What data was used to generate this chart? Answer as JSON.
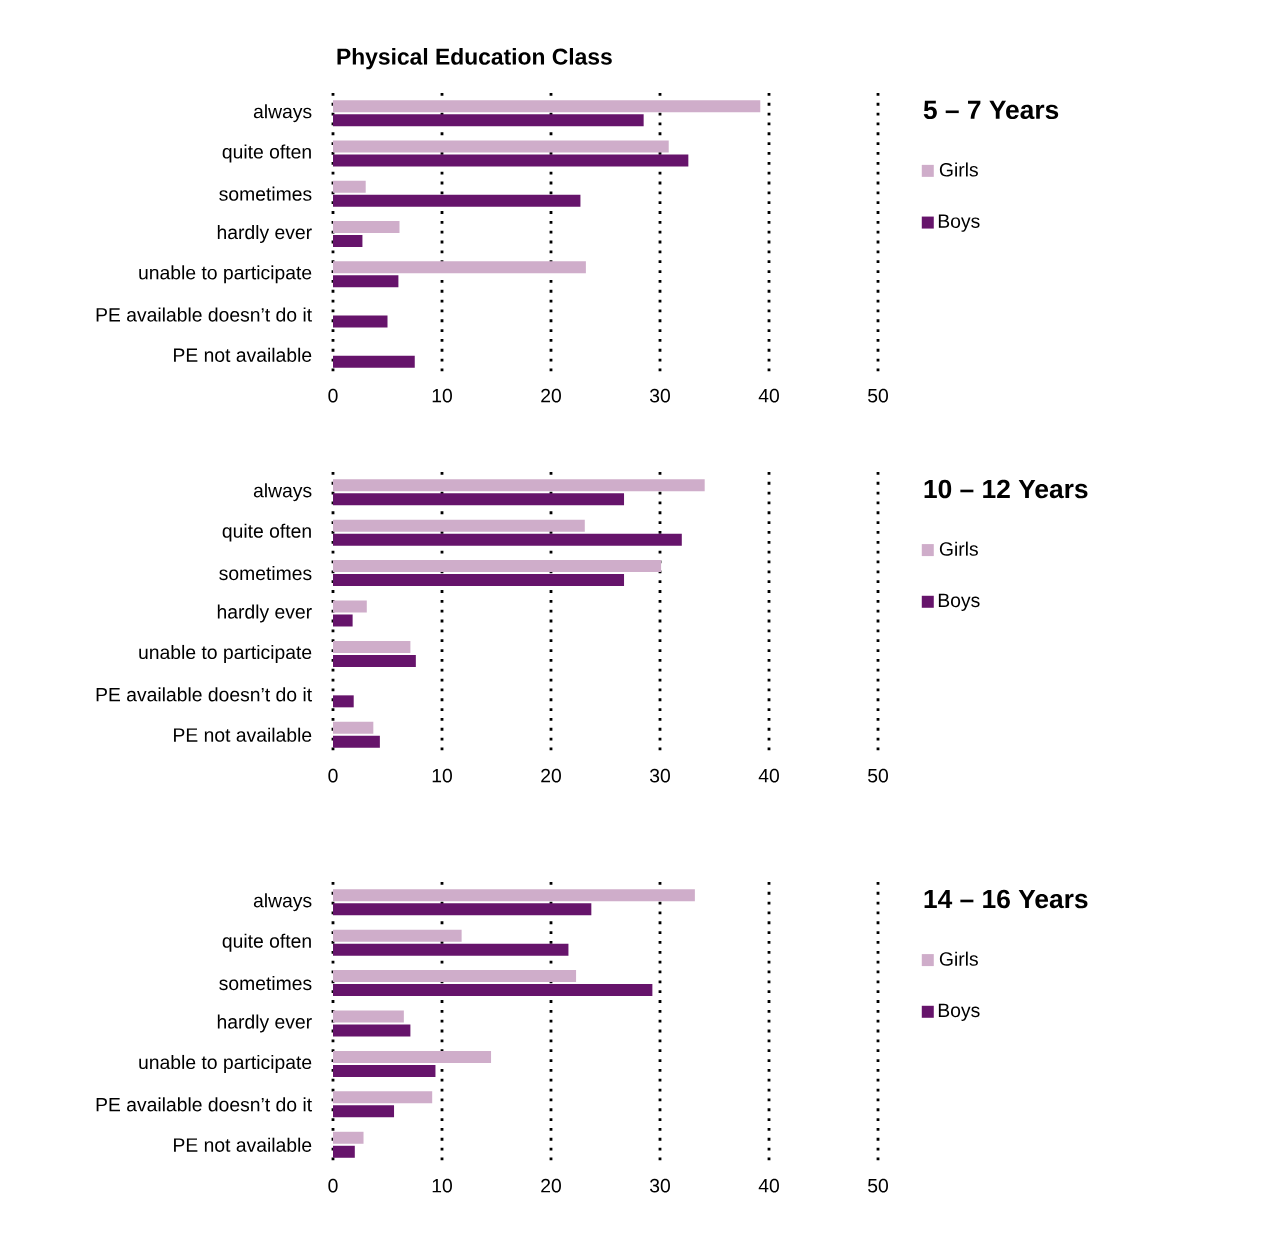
{
  "chart_data": [
    {
      "type": "bar",
      "orientation": "horizontal",
      "title": "Physical Education Class",
      "legend_title": "5 – 7 Years",
      "categories": [
        "always",
        "quite often",
        "sometimes",
        "hardly ever",
        "unable to participate",
        "PE available doesn’t do it",
        "PE not available"
      ],
      "series": [
        {
          "name": "Girls",
          "color": "#cfadca",
          "values": [
            39.2,
            30.8,
            3.0,
            6.1,
            23.2,
            0,
            0
          ]
        },
        {
          "name": "Boys",
          "color": "#66146b",
          "values": [
            28.5,
            32.6,
            22.7,
            2.7,
            6.0,
            5.0,
            7.5
          ]
        }
      ],
      "xlim": [
        0,
        50
      ],
      "xticks": [
        0,
        10,
        20,
        30,
        40,
        50
      ],
      "grid": "x",
      "legend": "right"
    },
    {
      "type": "bar",
      "orientation": "horizontal",
      "legend_title": "10 – 12 Years",
      "categories": [
        "always",
        "quite often",
        "sometimes",
        "hardly ever",
        "unable to participate",
        "PE available doesn’t do it",
        "PE not available"
      ],
      "series": [
        {
          "name": "Girls",
          "color": "#cfadca",
          "values": [
            34.1,
            23.1,
            30.1,
            3.1,
            7.1,
            0,
            3.7
          ]
        },
        {
          "name": "Boys",
          "color": "#66146b",
          "values": [
            26.7,
            32.0,
            26.7,
            1.8,
            7.6,
            1.9,
            4.3
          ]
        }
      ],
      "xlim": [
        0,
        50
      ],
      "xticks": [
        0,
        10,
        20,
        30,
        40,
        50
      ],
      "grid": "x",
      "legend": "right"
    },
    {
      "type": "bar",
      "orientation": "horizontal",
      "legend_title": "14 – 16 Years",
      "categories": [
        "always",
        "quite often",
        "sometimes",
        "hardly ever",
        "unable to participate",
        "PE available doesn’t do it",
        "PE not available"
      ],
      "series": [
        {
          "name": "Girls",
          "color": "#cfadca",
          "values": [
            33.2,
            11.8,
            22.3,
            6.5,
            14.5,
            9.1,
            2.8
          ]
        },
        {
          "name": "Boys",
          "color": "#66146b",
          "values": [
            23.7,
            21.6,
            29.3,
            7.1,
            9.4,
            5.6,
            2.0
          ]
        }
      ],
      "xlim": [
        0,
        50
      ],
      "xticks": [
        0,
        10,
        20,
        30,
        40,
        50
      ],
      "grid": "x",
      "legend": "right"
    }
  ]
}
